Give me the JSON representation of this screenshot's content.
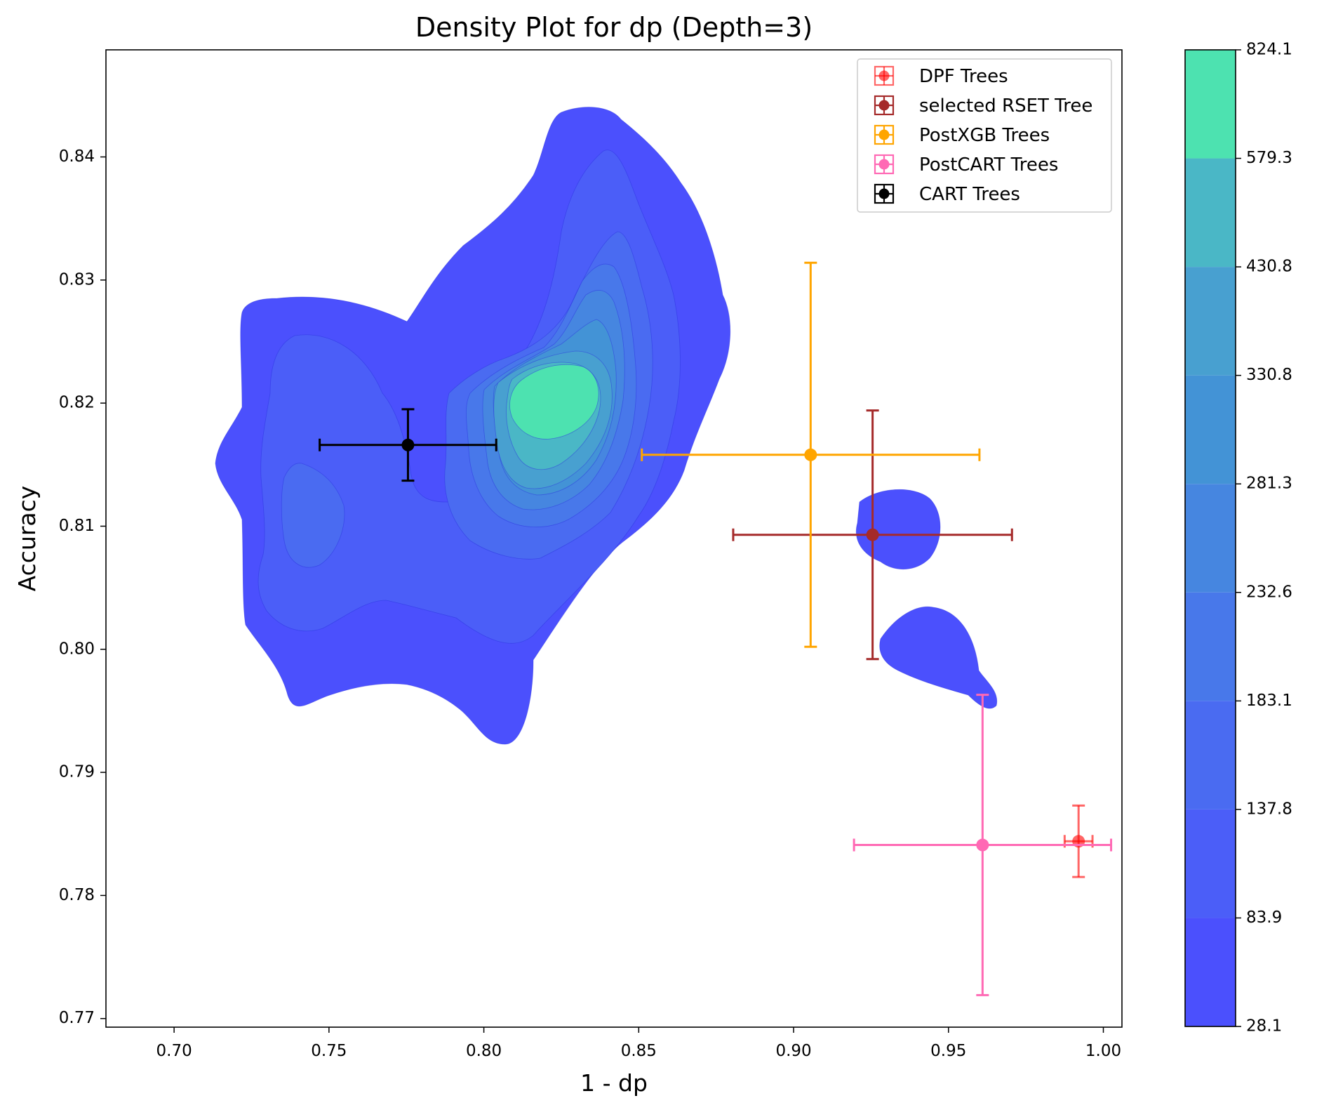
{
  "chart_data": {
    "type": "scatter",
    "title": "Density Plot for dp (Depth=3)",
    "xlabel": "1 - dp",
    "ylabel": "Accuracy",
    "xlim": [
      0.678,
      1.006
    ],
    "ylim": [
      0.7693,
      0.8487
    ],
    "x_ticks": [
      "0.70",
      "0.75",
      "0.80",
      "0.85",
      "0.90",
      "0.95",
      "1.00"
    ],
    "y_ticks": [
      "0.77",
      "0.78",
      "0.79",
      "0.80",
      "0.81",
      "0.82",
      "0.83",
      "0.84"
    ],
    "legend_position": "upper right",
    "grid": false,
    "series": [
      {
        "name": "DPF Trees",
        "color": "#ff0000",
        "alpha": 0.6,
        "x": 0.992,
        "y": 0.7844,
        "xerr": 0.0045,
        "yerr": 0.0029
      },
      {
        "name": "selected RSET Tree",
        "color": "#a52a2a",
        "alpha": 1,
        "x": 0.9255,
        "y": 0.8093,
        "xerr": 0.045,
        "yerr": 0.0101
      },
      {
        "name": "PostXGB Trees",
        "color": "#ffa500",
        "alpha": 1,
        "x": 0.9055,
        "y": 0.8158,
        "xerr": 0.0545,
        "yerr": 0.0156
      },
      {
        "name": "PostCART Trees",
        "color": "#ff69b4",
        "alpha": 1,
        "x": 0.961,
        "y": 0.7841,
        "xerr": 0.0415,
        "yerr": 0.0122
      },
      {
        "name": "CART Trees",
        "color": "#000000",
        "alpha": 1,
        "x": 0.7755,
        "y": 0.8166,
        "xerr": 0.0285,
        "yerr": 0.0029
      }
    ],
    "density": {
      "colorbar_ticks": [
        "824.1",
        "579.3",
        "430.8",
        "330.8",
        "281.3",
        "232.6",
        "183.1",
        "137.8",
        "83.9",
        "28.1"
      ],
      "level_colors": [
        "#4b50fd",
        "#4b5ef8",
        "#4a6bf1",
        "#4878ea",
        "#4686e0",
        "#4393d6",
        "#48a0d0",
        "#4ab7c6",
        "#4de2b0"
      ]
    }
  }
}
